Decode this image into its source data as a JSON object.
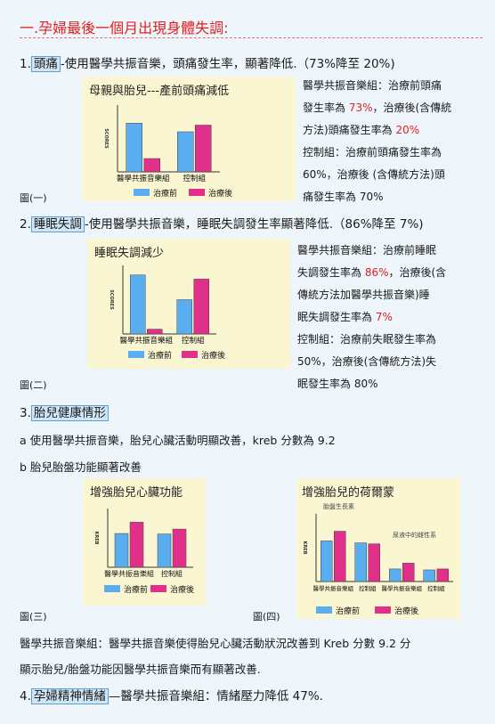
{
  "title": "一.孕婦最後一個月出現身體失調:",
  "sec1": {
    "num": "1.",
    "kw": "頭痛",
    "rest": "-使用醫學共振音樂，頭痛發生率，顯著降低.（73%降至 20%)"
  },
  "chart1": {
    "title": "母親與胎兒---產前頭痛減低",
    "fig": "圖(一)",
    "side": [
      [
        {
          "t": "醫學共振音樂組：治療前頭痛"
        }
      ],
      [
        {
          "t": "發生率為 "
        },
        {
          "t": "73%",
          "red": true
        },
        {
          "t": "，治療後(含傳統"
        }
      ],
      [
        {
          "t": "方法)頭痛發生率為 "
        },
        {
          "t": "20%",
          "red": true
        }
      ],
      [
        {
          "t": "控制組：治療前頭痛發生率為"
        }
      ],
      [
        {
          "t": "60%，治療後 (含傳統方法)頭"
        }
      ],
      [
        {
          "t": "痛發生率為 70%"
        }
      ]
    ]
  },
  "sec2": {
    "num": "2.",
    "kw": "睡眠失調",
    "rest": "-使用醫學共振音樂，睡眠失調發生率顯著降低.（86%降至 7%)"
  },
  "chart2": {
    "title": "睡眠失調減少",
    "fig": "圖(二)",
    "side": [
      [
        {
          "t": "醫學共振音樂組：治療前睡眠"
        }
      ],
      [
        {
          "t": "失調發生率為 "
        },
        {
          "t": "86%",
          "red": true
        },
        {
          "t": "，治療後(含"
        }
      ],
      [
        {
          "t": "傳統方法加醫學共振音樂)睡"
        }
      ],
      [
        {
          "t": "眠失調發生率為 "
        },
        {
          "t": "7%",
          "red": true
        }
      ],
      [
        {
          "t": "控制組：治療前失眠發生率為"
        }
      ],
      [
        {
          "t": "50%，治療後(含傳統方法)失"
        }
      ],
      [
        {
          "t": "眠發生率為 80%"
        }
      ]
    ]
  },
  "sec3": {
    "num": "3.",
    "kw": "胎兒健康情形"
  },
  "line_a": "a 使用醫學共振音樂，胎兒心臟活動明顯改善，kreb 分數為 9.2",
  "line_b": "b 胎兒胎盤功能顯著改善",
  "chart3": {
    "title": "增強胎兒心臟功能",
    "fig": "圖(三)"
  },
  "chart4": {
    "title": "增強胎兒的荷爾蒙",
    "fig": "圖(四)",
    "sub1": "胎盤生長素",
    "sub2": "尿液中的雌性系"
  },
  "summary1": "醫學共振音樂組：醫學共振音樂使得胎兒心臟活動狀況改善到 Kreb 分數 9.2 分",
  "summary2": "顯示胎兒/胎盤功能因醫學共振音樂而有顯著改善.",
  "sec4": {
    "num": "4.",
    "kw": "孕婦精神情緒",
    "rest": "—醫學共振音樂組：情緒壓力降低 47%."
  },
  "legend": {
    "before": "治療前",
    "after": "治療後",
    "color_before": "#5aaef0",
    "color_after": "#e0308a"
  },
  "groups": {
    "music": "醫學共振音樂組",
    "control": "控制組"
  },
  "chart_data": [
    {
      "type": "bar",
      "categories": [
        "醫學共振音樂組",
        "控制組"
      ],
      "ylabel": "SCORES",
      "ylim": [
        0,
        100
      ],
      "series": [
        {
          "name": "治療前",
          "values": [
            73,
            60
          ]
        },
        {
          "name": "治療後",
          "values": [
            20,
            70
          ]
        }
      ]
    },
    {
      "type": "bar",
      "categories": [
        "醫學共振音樂組",
        "控制組"
      ],
      "ylabel": "SCORES",
      "ylim": [
        0,
        100
      ],
      "series": [
        {
          "name": "治療前",
          "values": [
            86,
            50
          ]
        },
        {
          "name": "治療後",
          "values": [
            7,
            80
          ]
        }
      ]
    },
    {
      "type": "bar",
      "categories": [
        "醫學共振音樂組",
        "控制組"
      ],
      "ylabel": "KREB",
      "ylim": [
        0,
        12
      ],
      "series": [
        {
          "name": "治療前",
          "values": [
            6.9,
            6.8
          ]
        },
        {
          "name": "治療後",
          "values": [
            9.2,
            7.8
          ]
        }
      ]
    },
    {
      "type": "bar",
      "categories": [
        "醫學共振音樂組",
        "控制組",
        "醫學共振音樂組",
        "控制組"
      ],
      "ylabel": "KREB",
      "ylim": [
        0,
        350
      ],
      "series": [
        {
          "name": "治療前",
          "values": [
            210,
            200,
            65,
            60
          ]
        },
        {
          "name": "治療後",
          "values": [
            260,
            195,
            95,
            65
          ]
        }
      ]
    }
  ]
}
